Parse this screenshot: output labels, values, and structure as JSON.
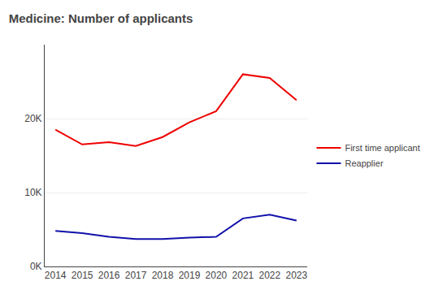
{
  "chart_data": {
    "type": "line",
    "title": "Medicine: Number of applicants",
    "x": [
      2014,
      2015,
      2016,
      2017,
      2018,
      2019,
      2020,
      2021,
      2022,
      2023
    ],
    "series": [
      {
        "name": "First time applicant",
        "color": "#ee0000",
        "values": [
          18500,
          16500,
          16800,
          16300,
          17500,
          19500,
          21000,
          26000,
          25500,
          22500
        ]
      },
      {
        "name": "Reapplier",
        "color": "#1111aa",
        "values": [
          4800,
          4500,
          4000,
          3700,
          3700,
          3900,
          4000,
          6500,
          7000,
          6200
        ]
      }
    ],
    "xlim": [
      2013.6,
      2023.4
    ],
    "xticks": [
      2014,
      2015,
      2016,
      2017,
      2018,
      2019,
      2020,
      2021,
      2022,
      2023
    ],
    "ylim": [
      0,
      30000
    ],
    "yticks": [
      {
        "value": 0,
        "label": "0K"
      },
      {
        "value": 10000,
        "label": "10K"
      },
      {
        "value": 20000,
        "label": "20K"
      }
    ],
    "grid": "y",
    "legend": "right"
  }
}
